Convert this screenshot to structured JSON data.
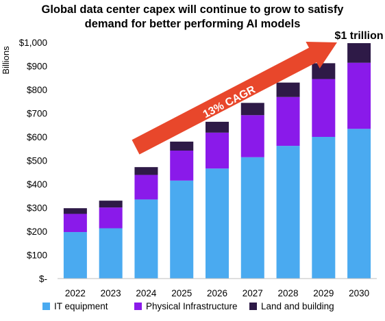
{
  "chart_data": {
    "type": "bar",
    "stacked": true,
    "title_lines": [
      "Global data center capex will continue to grow to satisfy",
      "demand for better performing AI models"
    ],
    "ylabel": "Billions",
    "xlabel": "",
    "ylim": [
      0,
      1000
    ],
    "yticks": [
      0,
      100,
      200,
      300,
      400,
      500,
      600,
      700,
      800,
      900,
      1000
    ],
    "ytick_labels": [
      "$-",
      "$100",
      "$200",
      "$300",
      "$400",
      "$500",
      "$600",
      "$700",
      "$800",
      "$900",
      "$1,000"
    ],
    "categories": [
      "2022",
      "2023",
      "2024",
      "2025",
      "2026",
      "2027",
      "2028",
      "2029",
      "2030"
    ],
    "series": [
      {
        "name": "IT equipment",
        "color": "#4aaaf0",
        "values": [
          197,
          213,
          335,
          415,
          466,
          514,
          562,
          600,
          634
        ]
      },
      {
        "name": "Physical Infrastructure",
        "color": "#8a1aea",
        "values": [
          77,
          88,
          104,
          127,
          152,
          178,
          207,
          245,
          280
        ]
      },
      {
        "name": "Land and building",
        "color": "#2e1a47",
        "values": [
          24,
          29,
          33,
          38,
          46,
          52,
          61,
          67,
          83
        ]
      }
    ],
    "annotations": {
      "arrow_label": "13% CAGR",
      "arrow_color": "#e8472b",
      "top_label": "$1 trillion"
    },
    "grid": false,
    "legend_position": "bottom"
  }
}
